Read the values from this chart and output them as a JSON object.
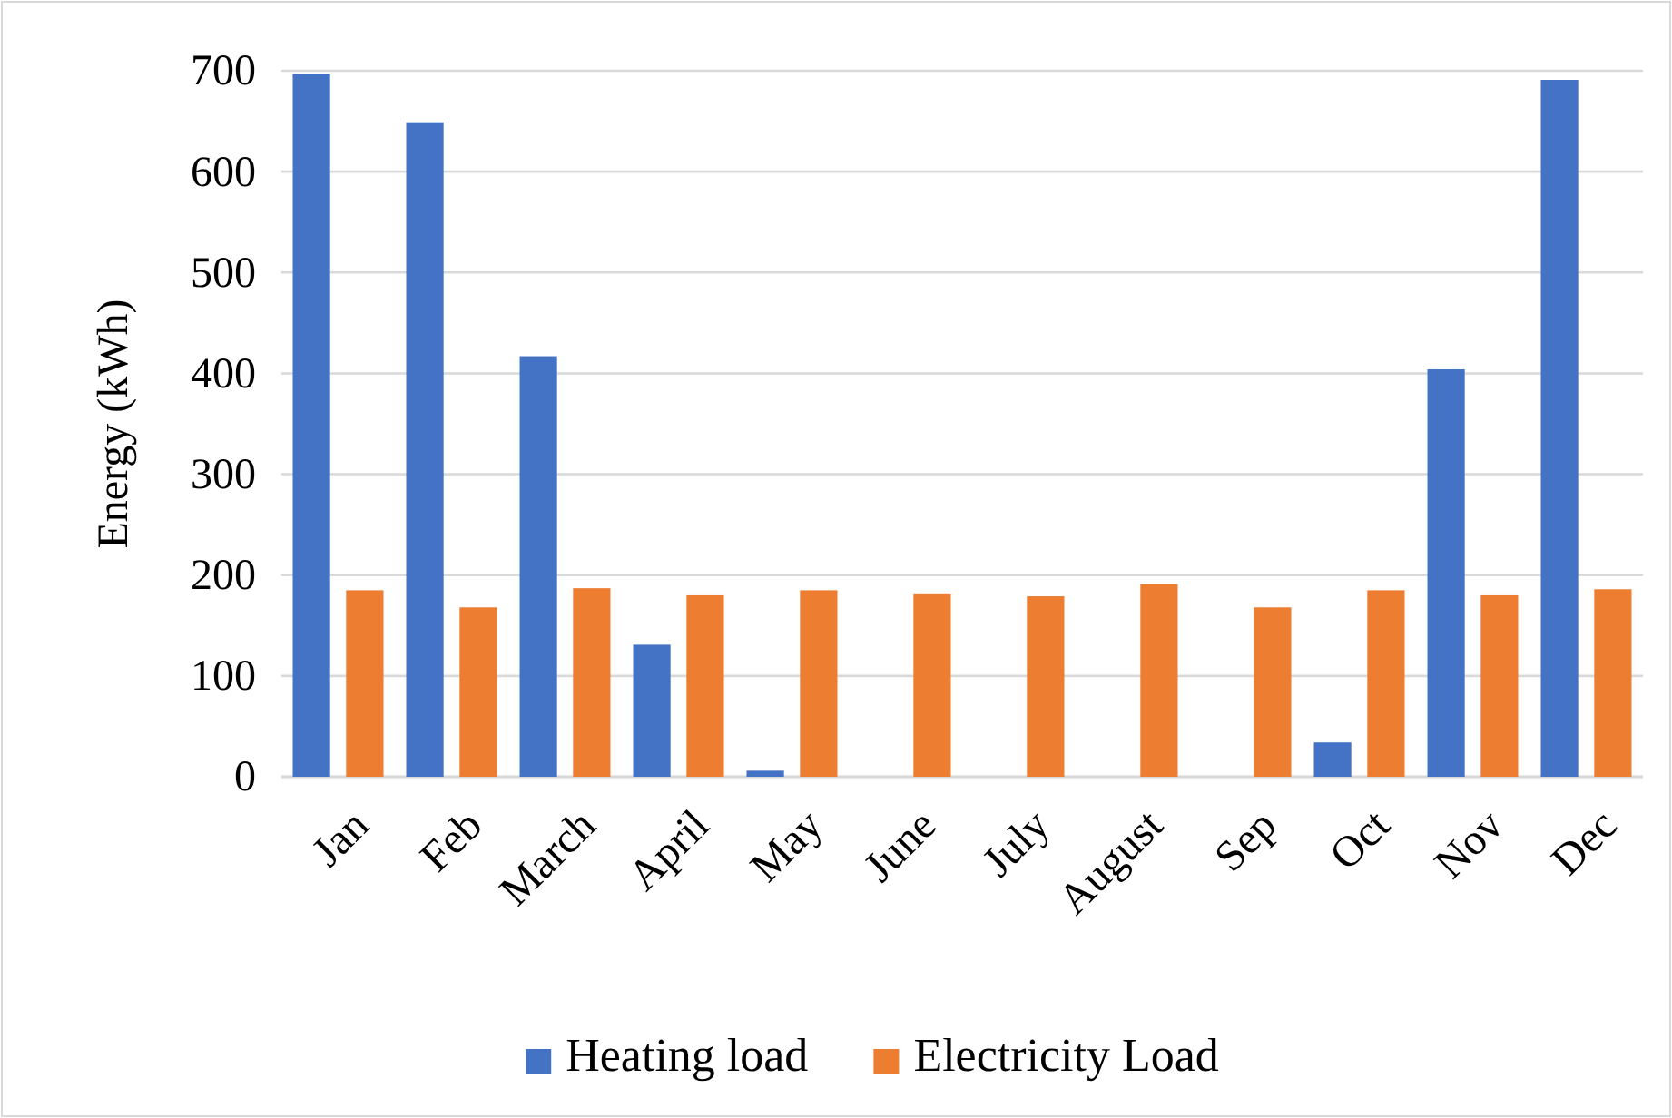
{
  "chart_data": {
    "type": "bar",
    "ylabel": "Energy (kWh)",
    "categories": [
      "Jan",
      "Feb",
      "March",
      "April",
      "May",
      "June",
      "July",
      "August",
      "Sep",
      "Oct",
      "Nov",
      "Dec"
    ],
    "series": [
      {
        "name": "Heating load",
        "color": "#4472c4",
        "values": [
          697,
          649,
          417,
          131,
          6,
          0,
          0,
          0,
          0,
          34,
          404,
          691
        ]
      },
      {
        "name": "Electricity Load",
        "color": "#ed7d31",
        "values": [
          185,
          168,
          187,
          180,
          185,
          181,
          179,
          191,
          168,
          185,
          180,
          186
        ]
      }
    ],
    "ylim": [
      0,
      700
    ],
    "yticks": [
      0,
      100,
      200,
      300,
      400,
      500,
      600,
      700
    ],
    "grid": "y",
    "legend": "bottom"
  }
}
